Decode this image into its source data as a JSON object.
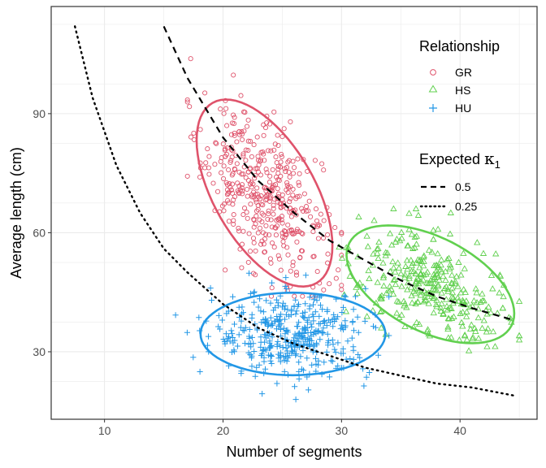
{
  "chart_data": {
    "type": "scatter",
    "xlabel": "Number of segments",
    "ylabel": "Average length (cm)",
    "xlim": [
      5.5,
      46.5
    ],
    "ylim": [
      13,
      117
    ],
    "x_ticks": [
      10,
      20,
      30,
      40
    ],
    "y_ticks": [
      30,
      60,
      90
    ],
    "grid": true,
    "legend_position": "top-right",
    "legends": [
      {
        "title": "Relationship",
        "entries": [
          {
            "label": "GR",
            "marker": "circle",
            "color": "#DF536B"
          },
          {
            "label": "HS",
            "marker": "triangle",
            "color": "#61D04F"
          },
          {
            "label": "HU",
            "marker": "plus",
            "color": "#2297E6"
          }
        ]
      },
      {
        "title_text": "Expected ",
        "title_symbol": "κ",
        "title_subscript": "1",
        "entries": [
          {
            "label": "0.5",
            "linetype": "dashed"
          },
          {
            "label": "0.25",
            "linetype": "dotted"
          }
        ]
      }
    ],
    "series": [
      {
        "name": "GR",
        "marker": "circle",
        "color": "#DF536B",
        "center": [
          23.5,
          70
        ],
        "ellipse": {
          "semi_axis_major": 29,
          "semi_axis_minor": 4.2,
          "slope_direction": -3.6
        },
        "n_points": 430,
        "x_range": [
          17,
          30
        ],
        "y_range": [
          44,
          112
        ]
      },
      {
        "name": "HS",
        "marker": "triangle",
        "color": "#61D04F",
        "center": [
          37.5,
          47
        ],
        "ellipse": {
          "semi_axis_major": 8.4,
          "semi_axis_minor": 7.5,
          "slope_direction": -1.0
        },
        "n_points": 330,
        "x_range": [
          29,
          45
        ],
        "y_range": [
          29,
          66
        ]
      },
      {
        "name": "HU",
        "marker": "plus",
        "color": "#2297E6",
        "center": [
          25.9,
          34.5
        ],
        "ellipse": {
          "semi_axis_major": 15.5,
          "semi_axis_minor": 8.0,
          "slope_direction": 0
        },
        "n_points": 420,
        "x_range": [
          16,
          34
        ],
        "y_range": [
          18,
          52
        ]
      }
    ],
    "curves": [
      {
        "name": "0.5",
        "linetype": "dashed",
        "x": [
          15,
          17,
          20,
          23,
          26,
          29,
          32,
          35,
          38,
          41,
          44.5
        ],
        "y": [
          112,
          99,
          84,
          73,
          65,
          58,
          53,
          48,
          44,
          41,
          38
        ]
      },
      {
        "name": "0.25",
        "linetype": "dotted",
        "x": [
          7.5,
          9,
          11,
          13,
          15,
          17,
          20,
          23,
          26,
          29,
          32,
          35,
          38,
          41,
          44.5
        ],
        "y": [
          112,
          94,
          77,
          65,
          56,
          50,
          42,
          36,
          32,
          29,
          26,
          24,
          22,
          21,
          19
        ]
      }
    ]
  }
}
